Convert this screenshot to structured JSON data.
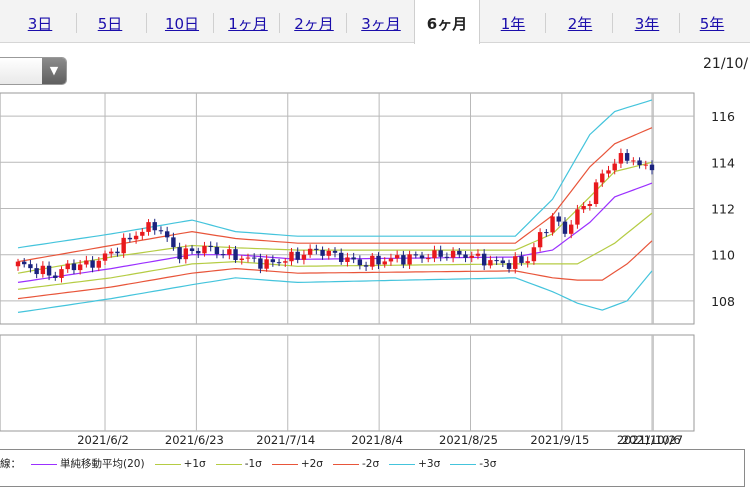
{
  "tabs": [
    {
      "label": "3日",
      "active": false
    },
    {
      "label": "5日",
      "active": false
    },
    {
      "label": "10日",
      "active": false
    },
    {
      "label": "1ヶ月",
      "active": false
    },
    {
      "label": "2ヶ月",
      "active": false
    },
    {
      "label": "3ヶ月",
      "active": false
    },
    {
      "label": "6ヶ月",
      "active": true
    },
    {
      "label": "1年",
      "active": false
    },
    {
      "label": "2年",
      "active": false
    },
    {
      "label": "3年",
      "active": false
    },
    {
      "label": "5年",
      "active": false
    }
  ],
  "date_label": "21/10/",
  "legend": [
    {
      "label": "線：",
      "color": ""
    },
    {
      "label": "単純移動平均(20)",
      "color": "#9b30ff"
    },
    {
      "label": "+1σ",
      "color": "#b5cc44"
    },
    {
      "label": "-1σ",
      "color": "#b5cc44"
    },
    {
      "label": "+2σ",
      "color": "#e8553a"
    },
    {
      "label": "-2σ",
      "color": "#e8553a"
    },
    {
      "label": "+3σ",
      "color": "#44c4dc"
    },
    {
      "label": "-3σ",
      "color": "#44c4dc"
    }
  ],
  "colors": {
    "up": "#e8191d",
    "down": "#1a237e",
    "grid": "#b9b9b9"
  },
  "chart_data": {
    "type": "line",
    "y_axis": {
      "min": 107,
      "max": 117,
      "ticks": [
        108,
        110,
        112,
        114,
        116
      ],
      "position": "right"
    },
    "x_ticks": [
      "2021/6/2",
      "2021/6/23",
      "2021/7/14",
      "2021/8/4",
      "2021/8/25",
      "2021/9/15",
      "2021/10/6",
      "2021/10/27"
    ],
    "close_anchors": [
      [
        0,
        109.6
      ],
      [
        6,
        109.1
      ],
      [
        8,
        109.5
      ],
      [
        12,
        109.6
      ],
      [
        15,
        110.1
      ],
      [
        19,
        110.9
      ],
      [
        22,
        111.3
      ],
      [
        26,
        110.0
      ],
      [
        30,
        110.3
      ],
      [
        34,
        110.0
      ],
      [
        40,
        109.6
      ],
      [
        43,
        109.8
      ],
      [
        48,
        110.2
      ],
      [
        52,
        109.9
      ],
      [
        55,
        109.6
      ],
      [
        60,
        109.8
      ],
      [
        64,
        109.9
      ],
      [
        68,
        110.0
      ],
      [
        72,
        110.0
      ],
      [
        76,
        109.7
      ],
      [
        79,
        109.6
      ],
      [
        82,
        109.8
      ],
      [
        84,
        110.8
      ],
      [
        86,
        111.6
      ],
      [
        88,
        111.0
      ],
      [
        90,
        111.8
      ],
      [
        92,
        112.4
      ],
      [
        94,
        113.5
      ],
      [
        96,
        114.0
      ],
      [
        98,
        114.3
      ],
      [
        100,
        113.8
      ],
      [
        102,
        113.9
      ]
    ],
    "series": [
      {
        "name": "単純移動平均(20)",
        "color": "#9b30ff",
        "values": [
          [
            0,
            108.8
          ],
          [
            15,
            109.4
          ],
          [
            28,
            110.0
          ],
          [
            35,
            110.0
          ],
          [
            45,
            109.8
          ],
          [
            80,
            109.9
          ],
          [
            86,
            110.2
          ],
          [
            92,
            111.4
          ],
          [
            96,
            112.5
          ],
          [
            102,
            113.1
          ]
        ]
      },
      {
        "name": "+1σ",
        "color": "#b5cc44",
        "values": [
          [
            0,
            109.2
          ],
          [
            15,
            109.9
          ],
          [
            28,
            110.4
          ],
          [
            35,
            110.3
          ],
          [
            45,
            110.2
          ],
          [
            80,
            110.2
          ],
          [
            86,
            110.9
          ],
          [
            92,
            112.5
          ],
          [
            96,
            113.6
          ],
          [
            102,
            114.0
          ]
        ]
      },
      {
        "name": "-1σ",
        "color": "#b5cc44",
        "values": [
          [
            0,
            108.5
          ],
          [
            15,
            109.0
          ],
          [
            28,
            109.6
          ],
          [
            35,
            109.7
          ],
          [
            45,
            109.5
          ],
          [
            80,
            109.6
          ],
          [
            86,
            109.6
          ],
          [
            90,
            109.6
          ],
          [
            96,
            110.5
          ],
          [
            102,
            111.8
          ]
        ]
      },
      {
        "name": "+2σ",
        "color": "#e8553a",
        "values": [
          [
            0,
            109.7
          ],
          [
            15,
            110.4
          ],
          [
            28,
            111.0
          ],
          [
            35,
            110.7
          ],
          [
            45,
            110.5
          ],
          [
            80,
            110.5
          ],
          [
            86,
            111.7
          ],
          [
            92,
            113.8
          ],
          [
            96,
            114.8
          ],
          [
            102,
            115.5
          ]
        ]
      },
      {
        "name": "-2σ",
        "color": "#e8553a",
        "values": [
          [
            0,
            108.1
          ],
          [
            15,
            108.6
          ],
          [
            28,
            109.2
          ],
          [
            35,
            109.4
          ],
          [
            45,
            109.2
          ],
          [
            80,
            109.3
          ],
          [
            86,
            109.0
          ],
          [
            90,
            108.9
          ],
          [
            94,
            108.9
          ],
          [
            98,
            109.6
          ],
          [
            102,
            110.6
          ]
        ]
      },
      {
        "name": "+3σ",
        "color": "#44c4dc",
        "values": [
          [
            0,
            110.3
          ],
          [
            15,
            110.9
          ],
          [
            28,
            111.5
          ],
          [
            35,
            111.0
          ],
          [
            45,
            110.8
          ],
          [
            80,
            110.8
          ],
          [
            86,
            112.4
          ],
          [
            92,
            115.2
          ],
          [
            96,
            116.2
          ],
          [
            102,
            116.7
          ]
        ]
      },
      {
        "name": "-3σ",
        "color": "#44c4dc",
        "values": [
          [
            0,
            107.5
          ],
          [
            15,
            108.1
          ],
          [
            28,
            108.7
          ],
          [
            35,
            109.0
          ],
          [
            45,
            108.8
          ],
          [
            80,
            109.0
          ],
          [
            86,
            108.4
          ],
          [
            90,
            107.9
          ],
          [
            94,
            107.6
          ],
          [
            98,
            108.0
          ],
          [
            102,
            109.3
          ]
        ]
      }
    ]
  }
}
